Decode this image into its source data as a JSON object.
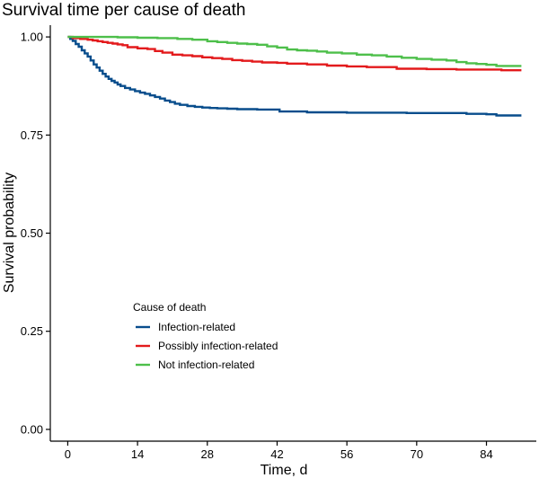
{
  "chart_data": {
    "type": "line",
    "step": true,
    "title": "Survival time per cause of death",
    "xlabel": "Time, d",
    "ylabel": "Survival probability",
    "xlim": [
      -3.5,
      94
    ],
    "ylim": [
      -0.03,
      1.03
    ],
    "x_ticks": [
      0,
      14,
      28,
      42,
      56,
      70,
      84
    ],
    "y_ticks": [
      0.0,
      0.25,
      0.5,
      0.75,
      1.0
    ],
    "y_tick_labels": [
      "0.00",
      "0.25",
      "0.50",
      "0.75",
      "1.00"
    ],
    "grid": false,
    "legend": {
      "title": "Cause of death",
      "position": "bottom-left inside"
    },
    "series": [
      {
        "name": "Infection-related",
        "color": "#084d8c",
        "x": [
          0,
          0.5,
          1,
          1.6,
          2.2,
          2.8,
          3.4,
          4,
          4.6,
          5.2,
          5.8,
          6.4,
          7,
          7.6,
          8.2,
          8.8,
          9.4,
          10,
          10.6,
          11.5,
          12.5,
          13.5,
          14.5,
          15.5,
          16.5,
          17.5,
          18.5,
          19.5,
          20.5,
          21.5,
          22.5,
          24,
          25.5,
          27,
          28.5,
          30,
          32,
          34,
          36,
          38,
          40,
          42.5,
          45,
          48,
          52,
          56,
          60,
          64,
          68,
          72,
          76,
          80,
          84,
          86,
          88,
          91
        ],
        "y": [
          1.0,
          0.995,
          0.99,
          0.982,
          0.975,
          0.966,
          0.958,
          0.95,
          0.94,
          0.93,
          0.922,
          0.914,
          0.906,
          0.899,
          0.893,
          0.888,
          0.884,
          0.879,
          0.875,
          0.87,
          0.866,
          0.862,
          0.858,
          0.855,
          0.851,
          0.847,
          0.843,
          0.838,
          0.834,
          0.83,
          0.827,
          0.824,
          0.822,
          0.82,
          0.819,
          0.818,
          0.817,
          0.816,
          0.816,
          0.815,
          0.815,
          0.81,
          0.81,
          0.808,
          0.808,
          0.807,
          0.807,
          0.807,
          0.806,
          0.806,
          0.806,
          0.804,
          0.803,
          0.8,
          0.8,
          0.8
        ]
      },
      {
        "name": "Possibly infection-related",
        "color": "#e31a1c",
        "x": [
          0,
          1,
          2.5,
          4,
          5,
          6,
          7,
          8,
          9,
          10,
          11,
          12,
          14,
          16,
          17.5,
          19,
          21,
          23,
          25,
          27,
          29,
          31,
          33,
          35,
          37,
          39,
          42,
          44,
          48,
          52,
          56,
          60,
          66,
          72,
          78,
          84,
          87,
          91
        ],
        "y": [
          1.0,
          0.997,
          0.995,
          0.993,
          0.991,
          0.989,
          0.987,
          0.985,
          0.983,
          0.981,
          0.979,
          0.974,
          0.971,
          0.969,
          0.964,
          0.96,
          0.955,
          0.953,
          0.951,
          0.948,
          0.946,
          0.944,
          0.941,
          0.939,
          0.937,
          0.935,
          0.934,
          0.932,
          0.93,
          0.927,
          0.925,
          0.923,
          0.919,
          0.918,
          0.917,
          0.917,
          0.915,
          0.915
        ]
      },
      {
        "name": "Not infection-related",
        "color": "#4dbf4a",
        "x": [
          0,
          2,
          6,
          10,
          14,
          18,
          22,
          25,
          28,
          30,
          32,
          34,
          36,
          38,
          40,
          42,
          44,
          46,
          48,
          50,
          52,
          55,
          58,
          61,
          64,
          67,
          70,
          73,
          76,
          78,
          80,
          82,
          84,
          86,
          91
        ],
        "y": [
          1.0,
          1.0,
          1.0,
          0.999,
          0.998,
          0.997,
          0.995,
          0.993,
          0.989,
          0.987,
          0.985,
          0.983,
          0.982,
          0.98,
          0.976,
          0.973,
          0.968,
          0.966,
          0.965,
          0.963,
          0.96,
          0.958,
          0.955,
          0.953,
          0.95,
          0.947,
          0.944,
          0.942,
          0.94,
          0.936,
          0.933,
          0.931,
          0.929,
          0.926,
          0.926
        ]
      }
    ]
  }
}
